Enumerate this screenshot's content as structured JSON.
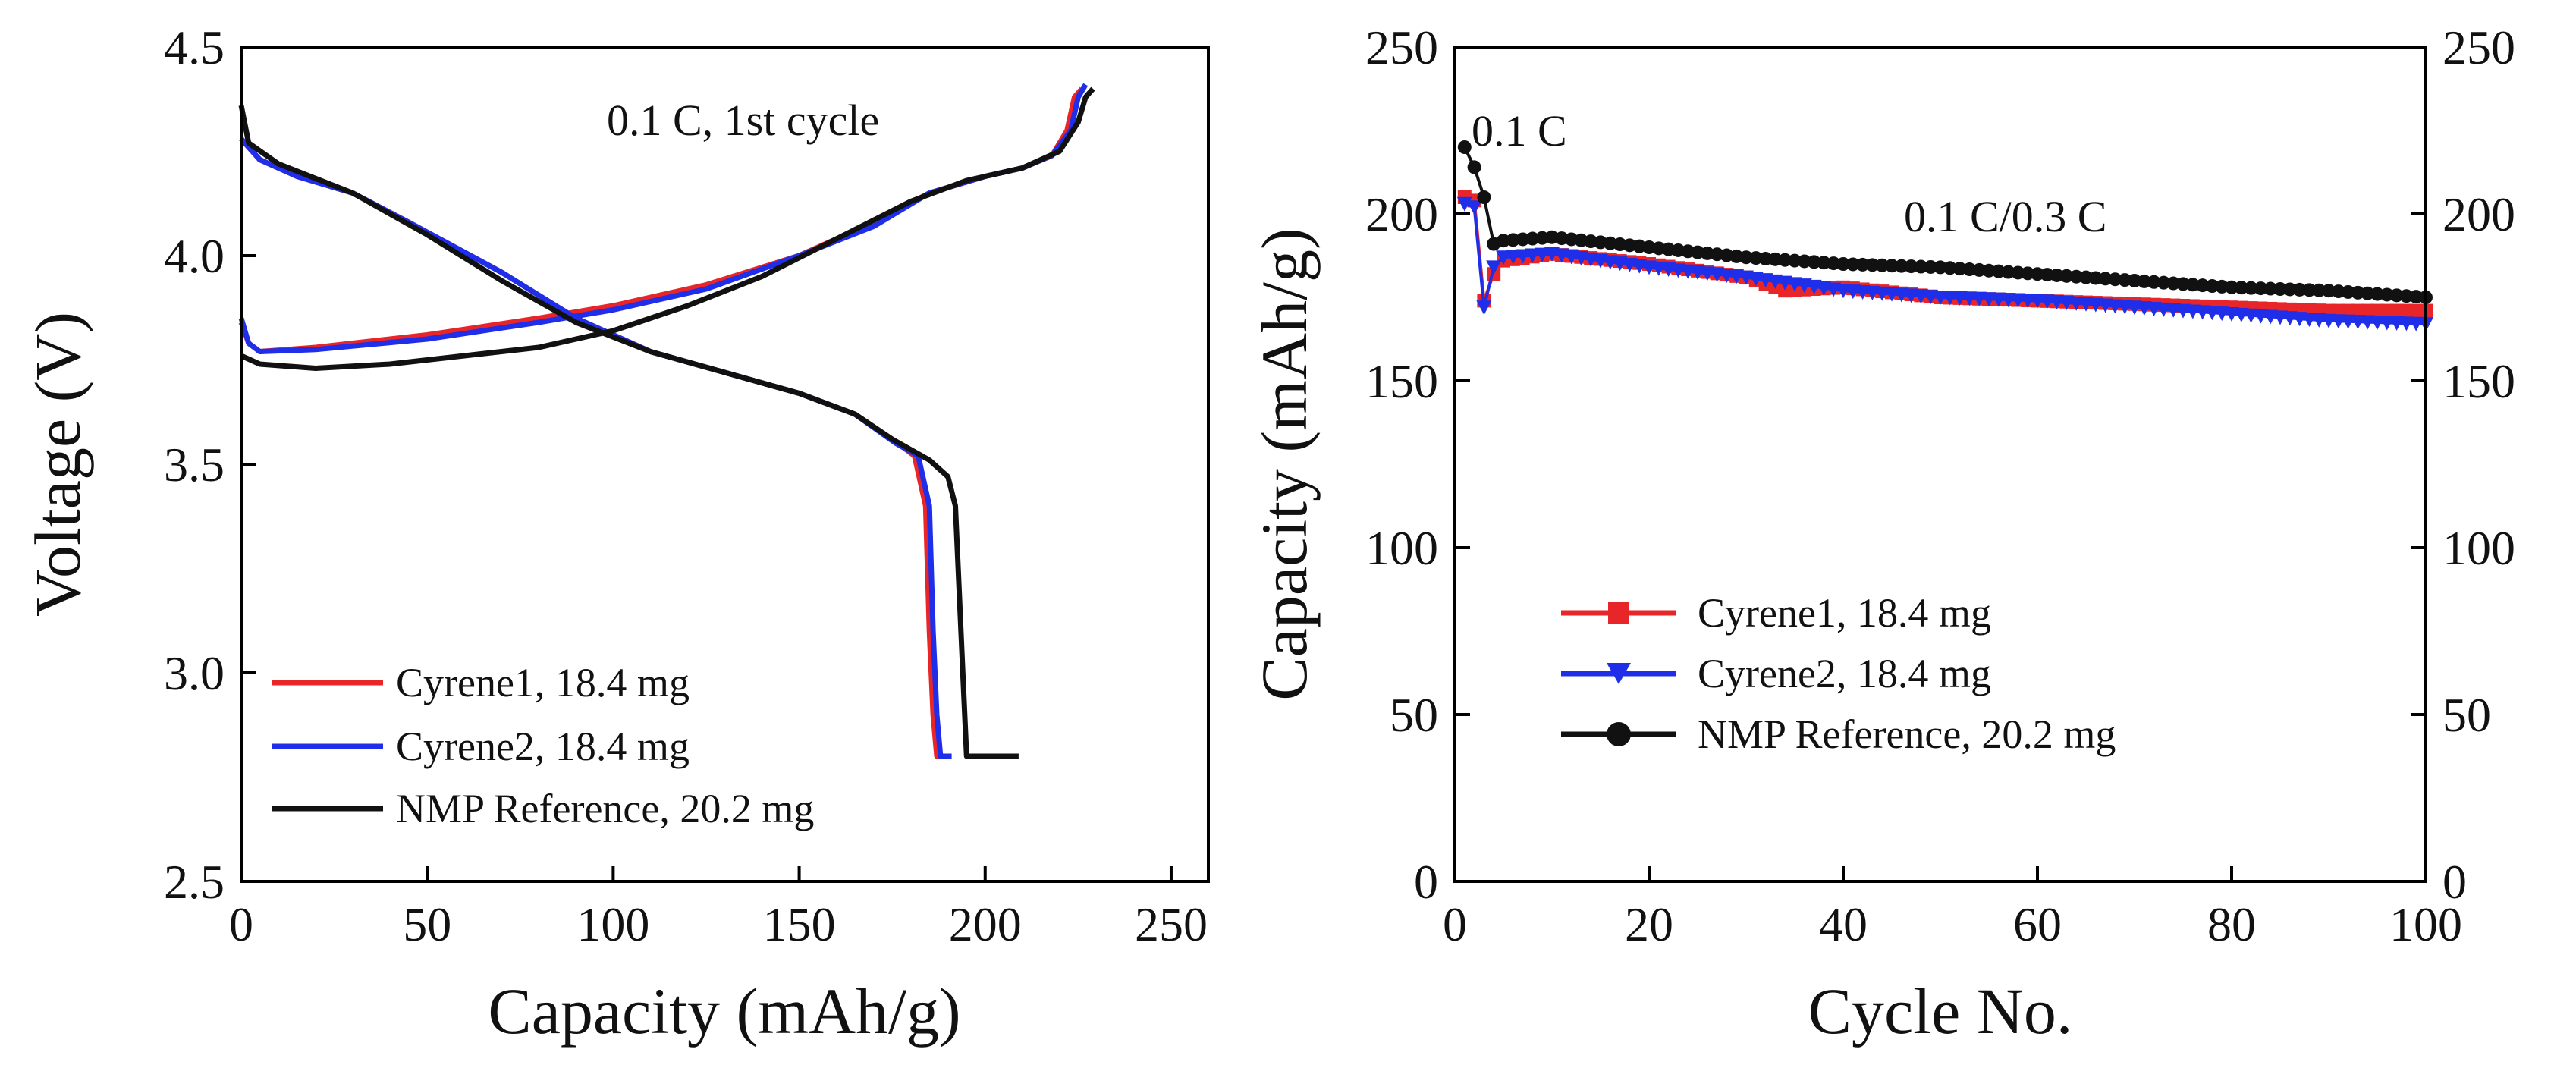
{
  "chart_data": [
    {
      "type": "line",
      "title": "0.1 C, 1st cycle",
      "xlabel": "Capacity (mAh/g)",
      "ylabel": "Voltage (V)",
      "xlim": [
        0,
        260
      ],
      "ylim": [
        2.5,
        4.5
      ],
      "xticks": [
        "0",
        "50",
        "100",
        "150",
        "200",
        "250"
      ],
      "yticks": [
        "2.5",
        "3.0",
        "3.5",
        "4.0",
        "4.5"
      ],
      "legend_position": "bottom-left",
      "series": [
        {
          "name": "Cyrene1, 18.4 mg",
          "color": "#e8262a",
          "charge": [
            [
              0,
              3.84
            ],
            [
              2,
              3.79
            ],
            [
              5,
              3.77
            ],
            [
              20,
              3.78
            ],
            [
              50,
              3.81
            ],
            [
              80,
              3.85
            ],
            [
              100,
              3.88
            ],
            [
              125,
              3.93
            ],
            [
              150,
              4.0
            ],
            [
              170,
              4.08
            ],
            [
              185,
              4.15
            ],
            [
              200,
              4.19
            ],
            [
              210,
              4.21
            ],
            [
              218,
              4.24
            ],
            [
              222,
              4.3
            ],
            [
              224,
              4.38
            ],
            [
              226,
              4.4
            ]
          ],
          "discharge": [
            [
              0,
              4.28
            ],
            [
              5,
              4.23
            ],
            [
              15,
              4.19
            ],
            [
              30,
              4.15
            ],
            [
              45,
              4.08
            ],
            [
              70,
              3.96
            ],
            [
              90,
              3.85
            ],
            [
              110,
              3.77
            ],
            [
              130,
              3.72
            ],
            [
              150,
              3.67
            ],
            [
              165,
              3.62
            ],
            [
              175,
              3.56
            ],
            [
              181,
              3.52
            ],
            [
              184,
              3.4
            ],
            [
              185,
              3.1
            ],
            [
              186,
              2.9
            ],
            [
              187,
              2.8
            ],
            [
              190,
              2.8
            ]
          ]
        },
        {
          "name": "Cyrene2, 18.4 mg",
          "color": "#1f2ee8",
          "charge": [
            [
              0,
              3.85
            ],
            [
              2,
              3.79
            ],
            [
              5,
              3.77
            ],
            [
              20,
              3.775
            ],
            [
              50,
              3.8
            ],
            [
              80,
              3.84
            ],
            [
              100,
              3.87
            ],
            [
              125,
              3.92
            ],
            [
              150,
              4.0
            ],
            [
              170,
              4.07
            ],
            [
              185,
              4.15
            ],
            [
              200,
              4.19
            ],
            [
              210,
              4.21
            ],
            [
              218,
              4.24
            ],
            [
              223,
              4.3
            ],
            [
              225,
              4.38
            ],
            [
              227,
              4.41
            ]
          ],
          "discharge": [
            [
              0,
              4.28
            ],
            [
              5,
              4.23
            ],
            [
              15,
              4.19
            ],
            [
              30,
              4.15
            ],
            [
              45,
              4.08
            ],
            [
              70,
              3.96
            ],
            [
              90,
              3.85
            ],
            [
              110,
              3.77
            ],
            [
              130,
              3.72
            ],
            [
              150,
              3.67
            ],
            [
              165,
              3.62
            ],
            [
              176,
              3.55
            ],
            [
              182,
              3.52
            ],
            [
              185,
              3.4
            ],
            [
              186,
              3.1
            ],
            [
              187,
              2.9
            ],
            [
              188,
              2.8
            ],
            [
              191,
              2.8
            ]
          ]
        },
        {
          "name": "NMP Reference, 20.2 mg",
          "color": "#111111",
          "charge": [
            [
              0,
              3.76
            ],
            [
              5,
              3.74
            ],
            [
              20,
              3.73
            ],
            [
              40,
              3.74
            ],
            [
              60,
              3.76
            ],
            [
              80,
              3.78
            ],
            [
              100,
              3.82
            ],
            [
              120,
              3.88
            ],
            [
              140,
              3.95
            ],
            [
              160,
              4.04
            ],
            [
              180,
              4.13
            ],
            [
              195,
              4.18
            ],
            [
              210,
              4.21
            ],
            [
              220,
              4.25
            ],
            [
              225,
              4.32
            ],
            [
              227,
              4.38
            ],
            [
              229,
              4.4
            ]
          ],
          "discharge": [
            [
              0,
              4.36
            ],
            [
              2,
              4.27
            ],
            [
              10,
              4.22
            ],
            [
              30,
              4.15
            ],
            [
              50,
              4.05
            ],
            [
              70,
              3.94
            ],
            [
              90,
              3.84
            ],
            [
              110,
              3.77
            ],
            [
              130,
              3.72
            ],
            [
              150,
              3.67
            ],
            [
              165,
              3.62
            ],
            [
              175,
              3.56
            ],
            [
              185,
              3.51
            ],
            [
              190,
              3.47
            ],
            [
              192,
              3.4
            ],
            [
              193,
              3.2
            ],
            [
              194,
              3.0
            ],
            [
              195,
              2.8
            ],
            [
              209,
              2.8
            ]
          ]
        }
      ]
    },
    {
      "type": "scatter",
      "title": "0.1 C/0.3 C",
      "annotation": "0.1 C",
      "xlabel": "Cycle No.",
      "ylabel": "Capacity (mAh/g)",
      "xlim": [
        0,
        100
      ],
      "ylim": [
        0,
        250
      ],
      "xticks": [
        "0",
        "20",
        "40",
        "60",
        "80",
        "100"
      ],
      "yticks": [
        "0",
        "50",
        "100",
        "150",
        "200",
        "250"
      ],
      "y2ticks": [
        "0",
        "50",
        "100",
        "150",
        "200",
        "250"
      ],
      "legend_position": "center-left",
      "series": [
        {
          "name": "Cyrene1, 18.4 mg",
          "color": "#e8262a",
          "marker": "square",
          "x": [
            1,
            2,
            3,
            4,
            5,
            10,
            20,
            30,
            34,
            40,
            50,
            60,
            70,
            80,
            90,
            100
          ],
          "y": [
            205,
            204,
            174,
            182,
            186,
            188,
            185,
            181,
            177,
            178,
            175,
            174,
            173,
            172,
            171,
            171
          ]
        },
        {
          "name": "Cyrene2, 18.4 mg",
          "color": "#1f2ee8",
          "marker": "triangle-down",
          "x": [
            1,
            2,
            3,
            4,
            5,
            10,
            20,
            30,
            40,
            50,
            60,
            70,
            80,
            90,
            100
          ],
          "y": [
            203,
            202,
            172,
            184,
            187,
            188,
            184,
            181,
            177,
            175,
            174,
            172,
            170,
            168,
            167
          ]
        },
        {
          "name": "NMP Reference, 20.2 mg",
          "color": "#111111",
          "marker": "circle",
          "x": [
            1,
            2,
            3,
            4,
            5,
            10,
            20,
            30,
            40,
            50,
            60,
            70,
            80,
            90,
            100
          ],
          "y": [
            220,
            214,
            205,
            191,
            192,
            193,
            190,
            187,
            185,
            184,
            182,
            180,
            178,
            177,
            175
          ]
        }
      ]
    }
  ]
}
